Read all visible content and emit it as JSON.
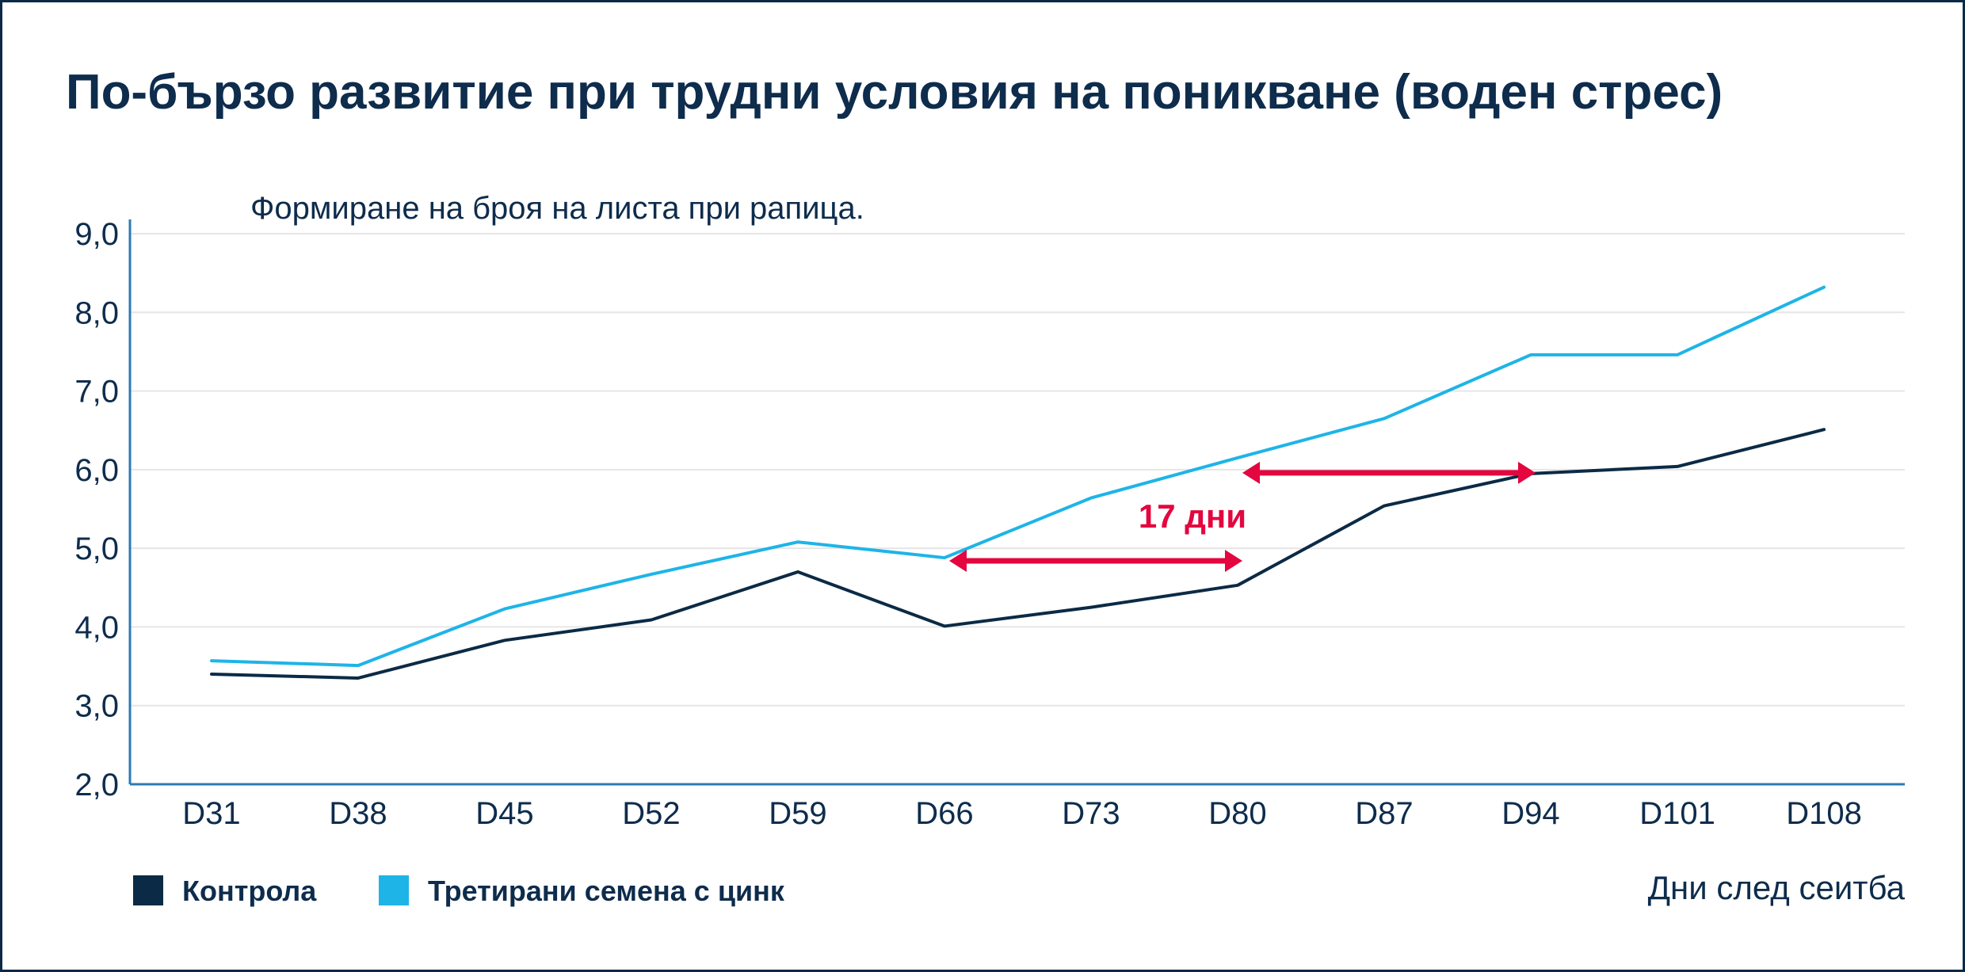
{
  "title": "По-бързо развитие при трудни условия на поникване (воден стрес)",
  "subtitle": "Формиране на броя на листа при рапица.",
  "xlabel": "Дни след сеитба",
  "annotation": "17 дни",
  "colors": {
    "control": "#0b2a45",
    "treated": "#1eb4e8",
    "annotation": "#e3063f",
    "text": "#0e2c4c",
    "grid": "#e6e6e6",
    "axis": "#2a7bb5"
  },
  "chart_data": {
    "type": "line",
    "title": "По-бързо развитие при трудни условия на поникване (воден стрес)",
    "subtitle": "Формиране на броя на листа при рапица.",
    "xlabel": "Дни след сеитба",
    "ylabel": "",
    "categories": [
      "D31",
      "D38",
      "D45",
      "D52",
      "D59",
      "D66",
      "D73",
      "D80",
      "D87",
      "D94",
      "D101",
      "D108"
    ],
    "ylim": [
      2.0,
      9.0
    ],
    "yticks": [
      "2,0",
      "3,0",
      "4,0",
      "5,0",
      "6,0",
      "7,0",
      "8,0",
      "9,0"
    ],
    "grid": true,
    "legend_position": "bottom-left",
    "series": [
      {
        "name": "Контрола",
        "values": [
          3.4,
          3.35,
          3.83,
          4.09,
          4.7,
          4.01,
          4.25,
          4.53,
          5.54,
          5.95,
          6.04,
          6.51
        ]
      },
      {
        "name": "Третирани семена с цинк",
        "values": [
          3.57,
          3.51,
          4.23,
          4.67,
          5.08,
          4.88,
          5.64,
          6.15,
          6.65,
          7.46,
          7.46,
          8.32
        ]
      }
    ],
    "annotations": [
      {
        "text": "17 дни",
        "arrows": [
          {
            "y": 4.88,
            "from_x": "D66",
            "to_x": "D80"
          },
          {
            "y": 6.0,
            "from_x": "D80",
            "to_x": "D94"
          }
        ]
      }
    ]
  }
}
